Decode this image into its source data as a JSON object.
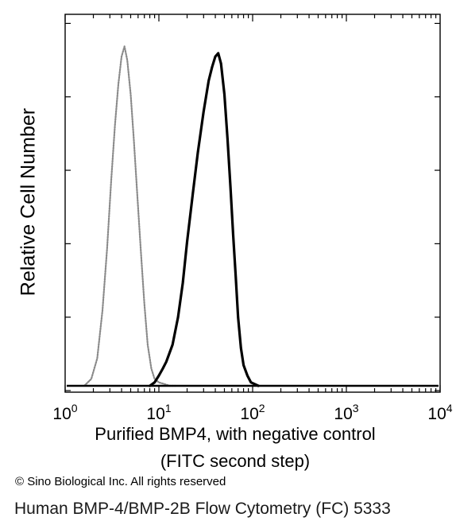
{
  "chart_data": {
    "type": "line",
    "title": "",
    "xlabel": [
      "Purified BMP4, with negative control",
      "(FITC second step)"
    ],
    "ylabel": "Relative Cell Number",
    "xscale": "log",
    "xlim": [
      1,
      10000
    ],
    "ylim": [
      0,
      100
    ],
    "x_ticks": [
      {
        "value": 1,
        "base": "10",
        "exp": "0"
      },
      {
        "value": 10,
        "base": "10",
        "exp": "1"
      },
      {
        "value": 100,
        "base": "10",
        "exp": "2"
      },
      {
        "value": 1000,
        "base": "10",
        "exp": "3"
      },
      {
        "value": 10000,
        "base": "10",
        "exp": "4"
      }
    ],
    "series": [
      {
        "style": "dotted",
        "color": "#8a8a8a",
        "x": [
          1.6,
          1.9,
          2.2,
          2.5,
          2.8,
          3.1,
          3.4,
          3.7,
          4.0,
          4.3,
          4.6,
          5.0,
          5.4,
          5.9,
          6.4,
          7.0,
          7.6,
          8.3,
          9.0,
          10.0,
          11.5,
          13.0,
          15.0
        ],
        "y": [
          0,
          2,
          8,
          22,
          40,
          60,
          76,
          88,
          96,
          99,
          95,
          85,
          72,
          55,
          40,
          24,
          12,
          5,
          2,
          1,
          0.5,
          0,
          0
        ]
      },
      {
        "style": "solid",
        "color": "#000000",
        "x": [
          8,
          9,
          10,
          11,
          12,
          14,
          16,
          18,
          20,
          23,
          26,
          30,
          34,
          37,
          40,
          43,
          46,
          50,
          54,
          58,
          62,
          66,
          70,
          75,
          80,
          88,
          96,
          105,
          115
        ],
        "y": [
          0,
          1,
          3,
          5,
          7,
          12,
          20,
          30,
          42,
          56,
          68,
          80,
          89,
          93,
          96,
          97,
          94,
          85,
          72,
          58,
          44,
          32,
          20,
          11,
          6,
          3,
          1,
          0.5,
          0
        ]
      }
    ]
  },
  "copyright": "© Sino Biological Inc. All rights reserved",
  "caption": "Human BMP-4/BMP-2B Flow Cytometry (FC) 5333"
}
